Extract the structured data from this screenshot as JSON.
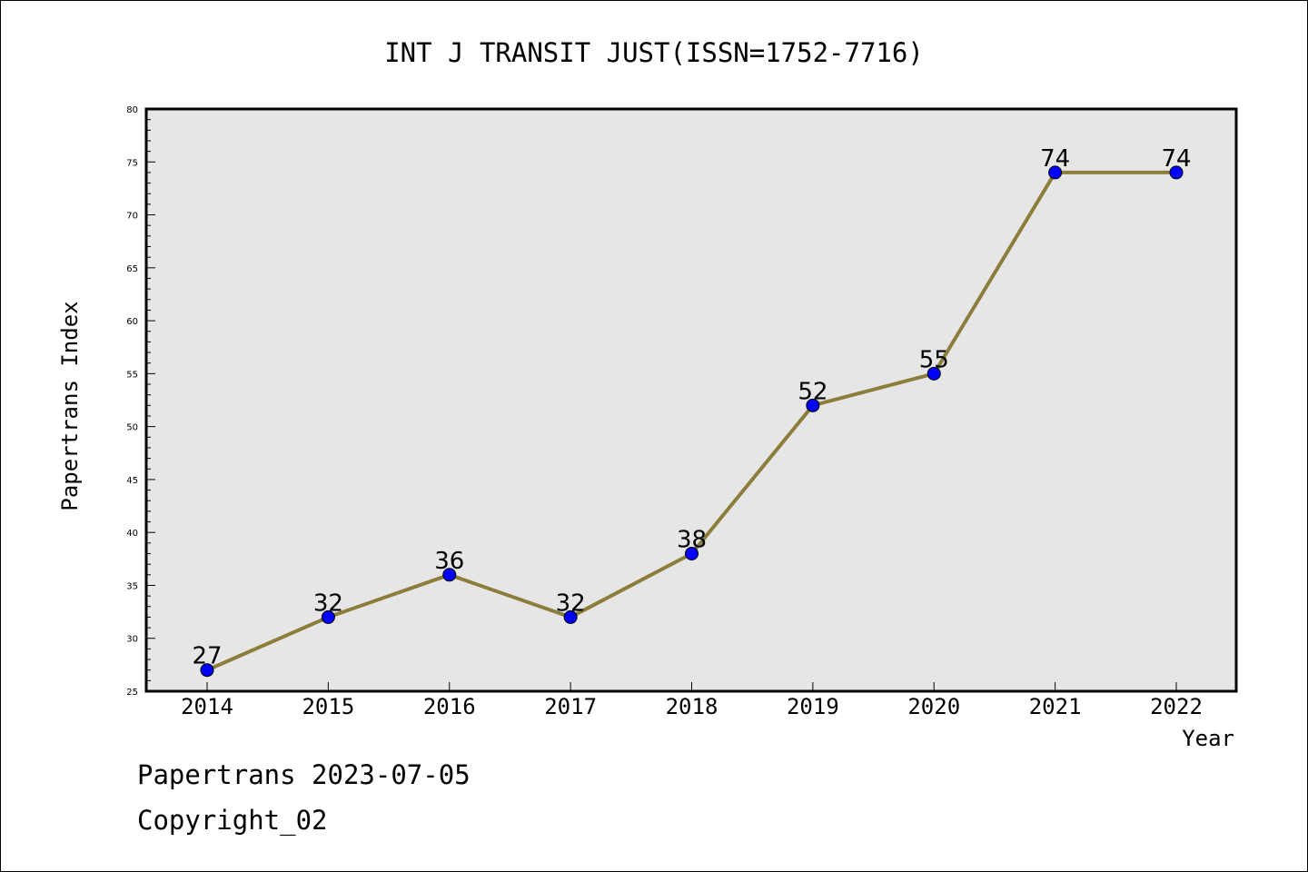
{
  "chart_data": {
    "type": "line",
    "title": "INT J TRANSIT JUST(ISSN=1752-7716)",
    "xlabel": "Year",
    "ylabel": "Papertrans Index",
    "categories": [
      "2014",
      "2015",
      "2016",
      "2017",
      "2018",
      "2019",
      "2020",
      "2021",
      "2022"
    ],
    "values": [
      27,
      32,
      36,
      32,
      38,
      52,
      55,
      74,
      74
    ],
    "ylim": [
      25,
      80
    ],
    "yticks": [
      25,
      30,
      35,
      40,
      45,
      50,
      55,
      60,
      65,
      70,
      75,
      80
    ],
    "grid": false,
    "data_labels": true,
    "colors": {
      "line": "#8b7d3a",
      "marker": "#0000ff",
      "plot_background": "#e6e6e6"
    }
  },
  "footer": {
    "line1": "Papertrans 2023-07-05",
    "line2": "Copyright_02"
  }
}
